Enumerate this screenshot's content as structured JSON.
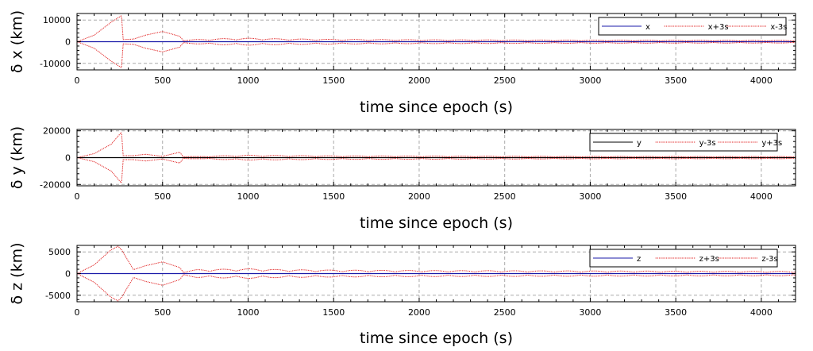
{
  "chart_data": [
    {
      "type": "line",
      "xlabel": "time since epoch (s)",
      "ylabel": "δ x (km)",
      "xlim": [
        0,
        4200
      ],
      "ylim": [
        -13000,
        13000
      ],
      "xticks": [
        0,
        500,
        1000,
        1500,
        2000,
        2500,
        3000,
        3500,
        4000
      ],
      "yticks": [
        -10000,
        0,
        10000
      ],
      "ytick_labels": [
        "-10000",
        "0",
        "10000"
      ],
      "grid": true,
      "legend_position": "top-right",
      "series": [
        {
          "name": "x",
          "color": "#1a1aa8",
          "style": "solid",
          "x": [
            0,
            4200
          ],
          "y": [
            0,
            0
          ]
        },
        {
          "name": "x+3s",
          "color": "#e02020",
          "style": "dotted",
          "envelope": {
            "x": [
              0,
              100,
              200,
              260,
              270,
              330,
              400,
              500,
              600,
              620,
              700,
              850,
              1000,
              1200,
              1500,
              2000,
              3000,
              4200
            ],
            "y": [
              0,
              3000,
              9000,
              12000,
              1000,
              1200,
              3000,
              4700,
              2500,
              700,
              1000,
              1400,
              1600,
              1300,
              1100,
              900,
              700,
              600
            ]
          },
          "ripple_period": 310
        },
        {
          "name": "x-3s",
          "color": "#e02020",
          "style": "dotted",
          "envelope": {
            "x": [
              0,
              100,
              200,
              260,
              270,
              330,
              400,
              500,
              600,
              620,
              700,
              850,
              1000,
              1200,
              1500,
              2000,
              3000,
              4200
            ],
            "y": [
              0,
              -3000,
              -9000,
              -12000,
              -1000,
              -1200,
              -3000,
              -4700,
              -2500,
              -700,
              -1000,
              -1400,
              -1600,
              -1300,
              -1100,
              -900,
              -700,
              -600
            ]
          },
          "ripple_period": 310
        }
      ]
    },
    {
      "type": "line",
      "xlabel": "time since epoch (s)",
      "ylabel": "δ y (km)",
      "xlim": [
        0,
        4200
      ],
      "ylim": [
        -21000,
        21000
      ],
      "xticks": [
        0,
        500,
        1000,
        1500,
        2000,
        2500,
        3000,
        3500,
        4000
      ],
      "yticks": [
        -20000,
        0,
        20000
      ],
      "ytick_labels": [
        "-20000",
        "0",
        "20000"
      ],
      "grid": true,
      "legend_position": "top-right",
      "series": [
        {
          "name": "y",
          "color": "#000000",
          "style": "solid",
          "x": [
            0,
            4200
          ],
          "y": [
            0,
            0
          ]
        },
        {
          "name": "y-3s",
          "color": "#e02020",
          "style": "dotted",
          "envelope": {
            "x": [
              0,
              100,
              200,
              260,
              270,
              330,
              400,
              500,
              600,
              620,
              700,
              850,
              1000,
              1200,
              1500,
              2000,
              3000,
              4200
            ],
            "y": [
              0,
              -3000,
              -10000,
              -19000,
              -1500,
              -1500,
              -2500,
              -1000,
              -4000,
              -1000,
              -800,
              -1400,
              -1800,
              -1600,
              -1300,
              -1200,
              -900,
              -800
            ]
          },
          "ripple_period": 310
        },
        {
          "name": "y+3s",
          "color": "#e02020",
          "style": "dotted",
          "envelope": {
            "x": [
              0,
              100,
              200,
              260,
              270,
              330,
              400,
              500,
              600,
              620,
              700,
              850,
              1000,
              1200,
              1500,
              2000,
              3000,
              4200
            ],
            "y": [
              0,
              3000,
              10000,
              19000,
              1500,
              1500,
              2500,
              1000,
              4000,
              1000,
              800,
              1400,
              1800,
              1600,
              1300,
              1200,
              900,
              800
            ]
          },
          "ripple_period": 310
        }
      ]
    },
    {
      "type": "line",
      "xlabel": "time since epoch (s)",
      "ylabel": "δ z (km)",
      "xlim": [
        0,
        4200
      ],
      "ylim": [
        -6500,
        6500
      ],
      "xticks": [
        0,
        500,
        1000,
        1500,
        2000,
        2500,
        3000,
        3500,
        4000
      ],
      "yticks": [
        -5000,
        0,
        5000
      ],
      "ytick_labels": [
        "-5000",
        "0",
        "5000"
      ],
      "grid": true,
      "legend_position": "top-right",
      "series": [
        {
          "name": "z",
          "color": "#1a1aa8",
          "style": "solid",
          "x": [
            0,
            4200
          ],
          "y": [
            0,
            0
          ]
        },
        {
          "name": "z+3s",
          "color": "#e02020",
          "style": "dotted",
          "envelope": {
            "x": [
              0,
              100,
              200,
              240,
              260,
              330,
              400,
              500,
              600,
              620,
              700,
              850,
              1000,
              1200,
              1500,
              2000,
              3000,
              4200
            ],
            "y": [
              0,
              2000,
              5500,
              6300,
              5500,
              900,
              1800,
              2700,
              1400,
              400,
              900,
              1000,
              1100,
              900,
              800,
              700,
              600,
              500
            ]
          },
          "ripple_period": 310
        },
        {
          "name": "z-3s",
          "color": "#e02020",
          "style": "dotted",
          "envelope": {
            "x": [
              0,
              100,
              200,
              240,
              260,
              330,
              400,
              500,
              600,
              620,
              700,
              850,
              1000,
              1200,
              1500,
              2000,
              3000,
              4200
            ],
            "y": [
              0,
              -2000,
              -5500,
              -6300,
              -5500,
              -900,
              -1800,
              -2700,
              -1400,
              -400,
              -900,
              -1000,
              -1100,
              -900,
              -800,
              -700,
              -600,
              -500
            ]
          },
          "ripple_period": 310
        }
      ]
    }
  ]
}
